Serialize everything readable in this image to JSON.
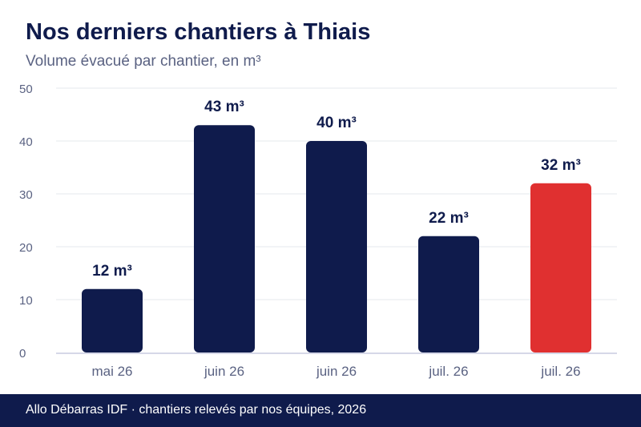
{
  "title": "Nos derniers chantiers à Thiais",
  "subtitle": "Volume évacué par chantier, en m³",
  "footer": "Allo Débarras IDF · chantiers relevés par nos équipes, 2026",
  "colors": {
    "bar": "#0f1b4c",
    "highlight": "#e03030",
    "grid": "#e6e8ee",
    "axis": "#c8cbe0",
    "tick_text": "#5a6282",
    "label_text": "#0f1b4c"
  },
  "chart_data": {
    "type": "bar",
    "categories": [
      "mai 26",
      "juin 26",
      "juin 26",
      "juil. 26",
      "juil. 26"
    ],
    "values": [
      12,
      43,
      40,
      22,
      32
    ],
    "data_labels": [
      "12 m³",
      "43 m³",
      "40 m³",
      "22 m³",
      "32 m³"
    ],
    "highlight_index": 4,
    "ylim": [
      0,
      50
    ],
    "yticks": [
      0,
      10,
      20,
      30,
      40,
      50
    ],
    "grid": true
  }
}
